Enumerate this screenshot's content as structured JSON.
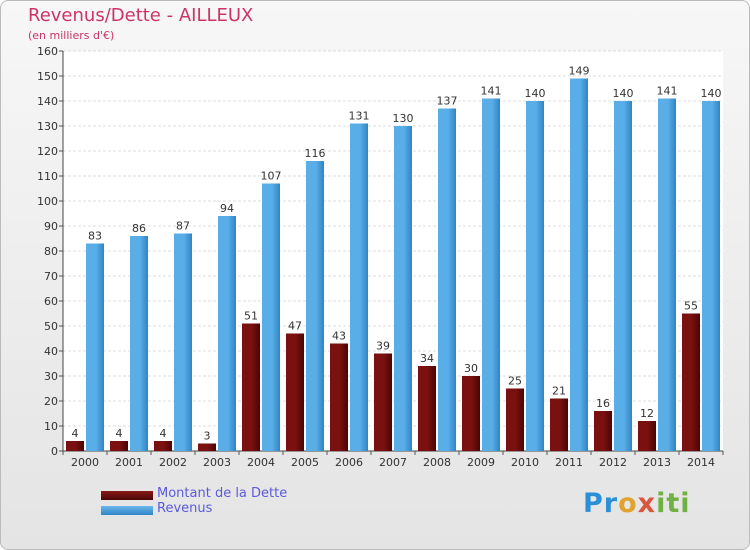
{
  "chart_data": {
    "type": "bar",
    "title": "Revenus/Dette - AILLEUX",
    "subtitle": "(en milliers d'€)",
    "categories": [
      "2000",
      "2001",
      "2002",
      "2003",
      "2004",
      "2005",
      "2006",
      "2007",
      "2008",
      "2009",
      "2010",
      "2011",
      "2012",
      "2013",
      "2014"
    ],
    "series": [
      {
        "name": "Montant de la Dette",
        "color": "#6b0a0a",
        "values": [
          4,
          4,
          4,
          3,
          51,
          47,
          43,
          39,
          34,
          30,
          25,
          21,
          16,
          12,
          55
        ]
      },
      {
        "name": "Revenus",
        "color": "#4fa3e0",
        "values": [
          83,
          86,
          87,
          94,
          107,
          116,
          131,
          130,
          137,
          141,
          140,
          149,
          140,
          141,
          140
        ]
      }
    ],
    "ylim": [
      0,
      160
    ],
    "yticks": [
      0,
      10,
      20,
      30,
      40,
      50,
      60,
      70,
      80,
      90,
      100,
      110,
      120,
      130,
      140,
      150,
      160
    ],
    "grid": true,
    "legend_position": "bottom-left"
  },
  "logo": {
    "parts": [
      "Pr",
      "o",
      "x",
      "iti"
    ]
  }
}
